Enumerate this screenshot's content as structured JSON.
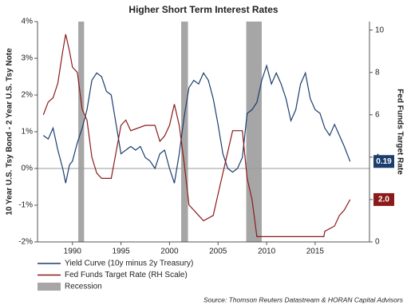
{
  "chart_data": {
    "type": "line",
    "title": "Higher Short Term Interest Rates",
    "ylabel": "10 Year U.S. Tsy Bond - 2 Year U.S. Tsy Note",
    "y2label": "Fed Funds Target Rate",
    "source": "Source: Thomson Reuters Datastream & HORAN Capital Advisors",
    "xlim": [
      1986.4,
      2020.6
    ],
    "xticks": [
      1990,
      1995,
      2000,
      2005,
      2010,
      2015
    ],
    "ylim": [
      -2,
      4
    ],
    "yticks": [
      {
        "value": -2,
        "label": "-2%"
      },
      {
        "value": -1,
        "label": "-1%"
      },
      {
        "value": 0,
        "label": "0%"
      },
      {
        "value": 1,
        "label": "1%"
      },
      {
        "value": 2,
        "label": "2%"
      },
      {
        "value": 3,
        "label": "3%"
      },
      {
        "value": 4,
        "label": "4%"
      }
    ],
    "y2lim": [
      0,
      10.4
    ],
    "y2ticks": [
      0,
      2,
      4,
      6,
      8,
      10
    ],
    "reference_line": 0,
    "series": [
      {
        "name": "Yield Curve (10y minus 2y Treasury)",
        "color": "#1c3d6e",
        "x": [
          1987.0,
          1987.5,
          1988.0,
          1988.5,
          1989.0,
          1989.3,
          1989.7,
          1990.0,
          1990.5,
          1991.0,
          1991.5,
          1992.0,
          1992.5,
          1993.0,
          1993.5,
          1994.0,
          1994.5,
          1995.0,
          1995.5,
          1996.0,
          1996.5,
          1997.0,
          1997.5,
          1998.0,
          1998.5,
          1999.0,
          1999.5,
          2000.0,
          2000.5,
          2001.0,
          2001.5,
          2002.0,
          2002.5,
          2003.0,
          2003.5,
          2004.0,
          2004.5,
          2005.0,
          2005.5,
          2006.0,
          2006.5,
          2007.0,
          2007.5,
          2008.0,
          2008.5,
          2009.0,
          2009.5,
          2010.0,
          2010.5,
          2011.0,
          2011.5,
          2012.0,
          2012.5,
          2013.0,
          2013.5,
          2014.0,
          2014.5,
          2015.0,
          2015.5,
          2016.0,
          2016.5,
          2017.0,
          2017.5,
          2018.0,
          2018.6
        ],
        "values": [
          0.9,
          0.8,
          1.1,
          0.5,
          0.0,
          -0.4,
          0.1,
          0.2,
          0.7,
          1.1,
          1.6,
          2.4,
          2.6,
          2.5,
          2.1,
          2.0,
          1.2,
          0.4,
          0.5,
          0.6,
          0.5,
          0.6,
          0.3,
          0.2,
          0.0,
          0.4,
          0.5,
          0.0,
          -0.4,
          0.4,
          1.4,
          2.2,
          2.4,
          2.3,
          2.6,
          2.4,
          1.9,
          1.2,
          0.4,
          0.0,
          -0.1,
          0.0,
          0.3,
          1.5,
          1.6,
          1.8,
          2.4,
          2.8,
          2.3,
          2.6,
          2.3,
          1.9,
          1.3,
          1.6,
          2.3,
          2.6,
          1.9,
          1.6,
          1.5,
          1.1,
          0.9,
          1.2,
          0.9,
          0.6,
          0.19
        ],
        "end_label": "0.19"
      },
      {
        "name": "Fed Funds Target Rate (RH Scale)",
        "color": "#8b1a1a",
        "axis": "y2",
        "x": [
          1987.0,
          1987.5,
          1988.0,
          1988.5,
          1989.0,
          1989.3,
          1989.7,
          1990.0,
          1990.5,
          1991.0,
          1991.5,
          1992.0,
          1992.5,
          1993.0,
          1994.0,
          1994.5,
          1995.0,
          1995.5,
          1996.0,
          1997.5,
          1998.5,
          1999.0,
          1999.5,
          2000.0,
          2000.5,
          2001.0,
          2001.5,
          2002.0,
          2003.0,
          2003.5,
          2004.5,
          2005.0,
          2005.5,
          2006.0,
          2006.5,
          2007.5,
          2008.0,
          2008.5,
          2009.0,
          2015.9,
          2016.0,
          2017.0,
          2017.5,
          2018.0,
          2018.6
        ],
        "values": [
          6.0,
          6.6,
          6.8,
          7.5,
          9.0,
          9.8,
          9.0,
          8.25,
          8.0,
          6.25,
          5.75,
          4.0,
          3.25,
          3.0,
          3.0,
          4.25,
          5.5,
          5.75,
          5.25,
          5.5,
          5.5,
          4.75,
          5.0,
          5.5,
          6.5,
          5.5,
          3.75,
          1.75,
          1.25,
          1.0,
          1.25,
          2.25,
          3.25,
          4.25,
          5.25,
          5.25,
          3.0,
          2.0,
          0.25,
          0.25,
          0.5,
          0.75,
          1.25,
          1.5,
          2.0
        ],
        "end_label": "2.0"
      }
    ],
    "recession": {
      "name": "Recession",
      "color": "#a6a6a6",
      "ranges": [
        [
          1990.6,
          1991.2
        ],
        [
          2001.2,
          2001.9
        ],
        [
          2007.9,
          2009.5
        ]
      ]
    }
  }
}
